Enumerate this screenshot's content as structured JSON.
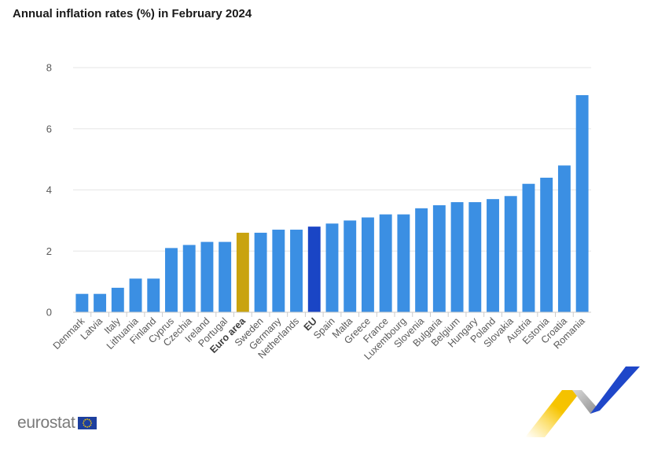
{
  "header": {
    "title": "Annual inflation rates (%) in February 2024"
  },
  "brand": {
    "name": "eurostat",
    "flag_icon": "eu-flag-icon"
  },
  "colors": {
    "default_bar": "#3b8fe3",
    "euro_area_bar": "#c9a30f",
    "eu_bar": "#1a45c5",
    "gridline": "#e6e6e6",
    "axis_text": "#595959"
  },
  "chart_data": {
    "type": "bar",
    "title": "Annual inflation rates (%) in February 2024",
    "xlabel": "",
    "ylabel": "",
    "ylim": [
      0,
      8
    ],
    "yticks": [
      0,
      2,
      4,
      6,
      8
    ],
    "grid": true,
    "categories": [
      "Denmark",
      "Latvia",
      "Italy",
      "Lithuania",
      "Finland",
      "Cyprus",
      "Czechia",
      "Ireland",
      "Portugal",
      "Euro area",
      "Sweden",
      "Germany",
      "Netherlands",
      "EU",
      "Spain",
      "Malta",
      "Greece",
      "France",
      "Luxembourg",
      "Slovenia",
      "Bulgaria",
      "Belgium",
      "Hungary",
      "Poland",
      "Slovakia",
      "Austria",
      "Estonia",
      "Croatia",
      "Romania"
    ],
    "values": [
      0.6,
      0.6,
      0.8,
      1.1,
      1.1,
      2.1,
      2.2,
      2.3,
      2.3,
      2.6,
      2.6,
      2.7,
      2.7,
      2.8,
      2.9,
      3.0,
      3.1,
      3.2,
      3.2,
      3.4,
      3.5,
      3.6,
      3.6,
      3.7,
      3.8,
      4.2,
      4.4,
      4.8,
      7.1
    ],
    "highlight": {
      "Euro area": "euro_area_bar",
      "EU": "eu_bar"
    },
    "bold_categories": [
      "Euro area",
      "EU"
    ]
  }
}
